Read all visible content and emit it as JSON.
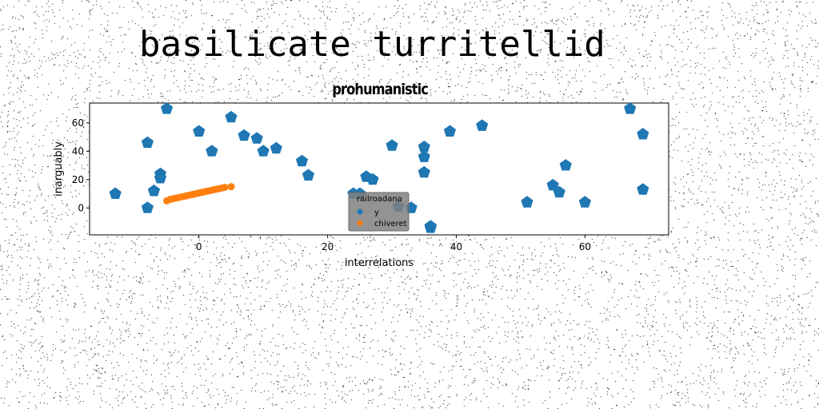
{
  "page": {
    "title": "basilicate turritellid"
  },
  "chart_data": {
    "type": "scatter",
    "title": "prohumanistic",
    "xlabel": "interrelations",
    "ylabel": "inarguably",
    "xlim": [
      -17,
      73
    ],
    "ylim": [
      -19,
      74
    ],
    "xticks": [
      0,
      20,
      40,
      60
    ],
    "yticks": [
      0,
      20,
      40,
      60
    ],
    "legend": {
      "title": "railroadana",
      "placement": "lower-center"
    },
    "series": [
      {
        "name": "y",
        "color": "#1f77b4",
        "marker": "pentagon",
        "points": [
          [
            -13,
            10
          ],
          [
            -8,
            0
          ],
          [
            -8,
            46
          ],
          [
            -7,
            12
          ],
          [
            -6,
            21
          ],
          [
            -6,
            24
          ],
          [
            -5,
            70
          ],
          [
            0,
            54
          ],
          [
            2,
            40
          ],
          [
            5,
            64
          ],
          [
            7,
            51
          ],
          [
            9,
            49
          ],
          [
            10,
            40
          ],
          [
            12,
            42
          ],
          [
            16,
            33
          ],
          [
            17,
            23
          ],
          [
            24,
            10
          ],
          [
            25,
            10
          ],
          [
            26,
            22
          ],
          [
            27,
            20
          ],
          [
            30,
            44
          ],
          [
            31,
            1
          ],
          [
            33,
            0
          ],
          [
            35,
            43
          ],
          [
            35,
            36
          ],
          [
            35,
            25
          ],
          [
            36,
            -14
          ],
          [
            36,
            -13
          ],
          [
            39,
            54
          ],
          [
            44,
            58
          ],
          [
            51,
            4
          ],
          [
            55,
            16
          ],
          [
            56,
            11
          ],
          [
            57,
            30
          ],
          [
            60,
            4
          ],
          [
            67,
            70
          ],
          [
            69,
            52
          ],
          [
            69,
            13
          ]
        ]
      },
      {
        "name": "chiveret",
        "color": "#ff7f0e",
        "marker": "circle",
        "points": [
          [
            -5,
            5
          ],
          [
            -4.5,
            6
          ],
          [
            -4,
            6.5
          ],
          [
            -3.5,
            7
          ],
          [
            -3,
            7.5
          ],
          [
            -2.5,
            8
          ],
          [
            -2,
            8.5
          ],
          [
            -1.5,
            9
          ],
          [
            -1,
            9.5
          ],
          [
            -0.5,
            10
          ],
          [
            0,
            10.5
          ],
          [
            0.5,
            11
          ],
          [
            1,
            11.5
          ],
          [
            1.5,
            12
          ],
          [
            2,
            12.5
          ],
          [
            2.5,
            13
          ],
          [
            3,
            13.5
          ],
          [
            3.5,
            14
          ],
          [
            4,
            14.5
          ],
          [
            5,
            15
          ]
        ]
      }
    ]
  }
}
